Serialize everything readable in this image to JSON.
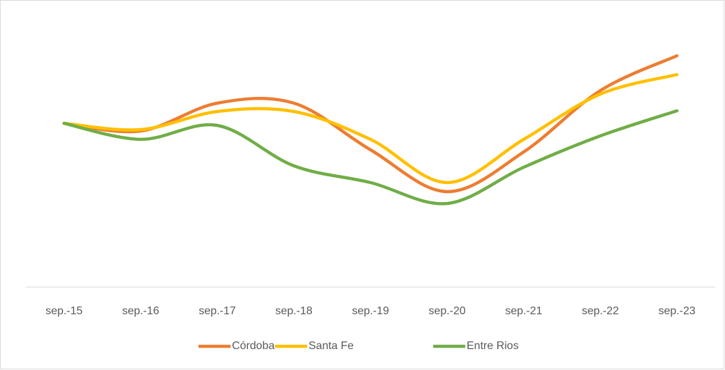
{
  "chart_data": {
    "type": "line",
    "categories": [
      "sep.-15",
      "sep.-16",
      "sep.-17",
      "sep.-18",
      "sep.-19",
      "sep.-20",
      "sep.-21",
      "sep.-22",
      "sep.-23"
    ],
    "series": [
      {
        "name": "Córdoba",
        "color": "#ed7d31",
        "values": [
          235,
          224,
          264,
          264,
          197,
          137,
          194,
          282,
          332
        ]
      },
      {
        "name": "Santa Fe",
        "color": "#ffc000",
        "values": [
          235,
          226,
          252,
          252,
          212,
          150,
          212,
          277,
          305
        ]
      },
      {
        "name": "Entre Rios",
        "color": "#70ad47",
        "values": [
          235,
          212,
          232,
          174,
          150,
          120,
          172,
          217,
          253
        ]
      }
    ],
    "ylim": [
      0,
      352
    ]
  }
}
